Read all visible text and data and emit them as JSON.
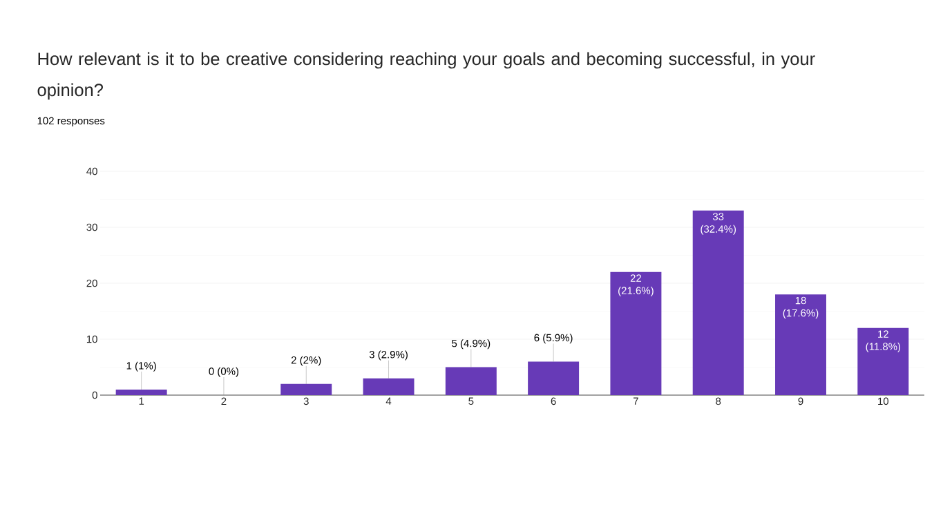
{
  "chart_data": {
    "type": "bar",
    "title": "How relevant is it to be creative considering reaching your goals and becoming successful, in your opinion?",
    "subtitle": "102 responses",
    "categories": [
      "1",
      "2",
      "3",
      "4",
      "5",
      "6",
      "7",
      "8",
      "9",
      "10"
    ],
    "values": [
      1,
      0,
      2,
      3,
      5,
      6,
      22,
      33,
      18,
      12
    ],
    "value_labels": [
      "1 (1%)",
      "0 (0%)",
      "2 (2%)",
      "3 (2.9%)",
      "5 (4.9%)",
      "6 (5.9%)",
      "22 (21.6%)",
      "33 (32.4%)",
      "18 (17.6%)",
      "12 (11.8%)"
    ],
    "color": "#673ab7",
    "ylim": [
      0,
      40
    ],
    "yticks": [
      0,
      10,
      20,
      30,
      40
    ],
    "grid": "y"
  }
}
